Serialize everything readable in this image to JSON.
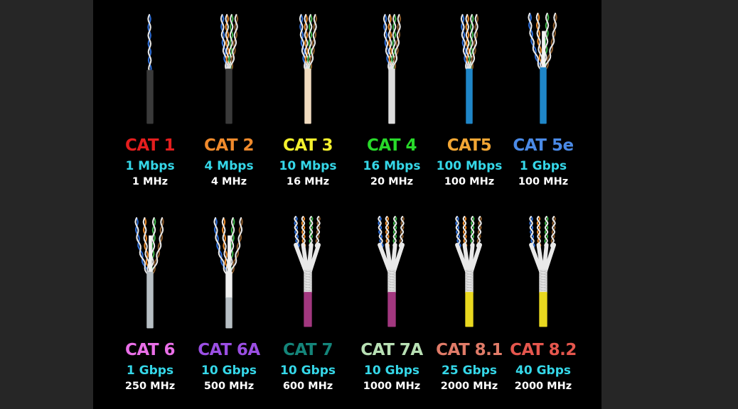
{
  "categories": [
    {
      "name": "CAT 1",
      "speed": "1 Mbps",
      "freq": "1 MHz",
      "color": "#e41e1e",
      "jacket": "#3a3a3a",
      "style": "bare2"
    },
    {
      "name": "CAT 2",
      "speed": "4 Mbps",
      "freq": "4 MHz",
      "color": "#f08a2c",
      "jacket": "#3a3a3a",
      "style": "bare4"
    },
    {
      "name": "CAT 3",
      "speed": "10 Mbps",
      "freq": "16 MHz",
      "color": "#f3f02d",
      "jacket": "#f1dcc0",
      "style": "bare4"
    },
    {
      "name": "CAT 4",
      "speed": "16 Mbps",
      "freq": "20 MHz",
      "color": "#28d92a",
      "jacket": "#dcdcdc",
      "style": "bare4"
    },
    {
      "name": "CAT5",
      "speed": "100 Mbps",
      "freq": "100 MHz",
      "color": "#f2a634",
      "jacket": "#1f86c8",
      "style": "bare4"
    },
    {
      "name": "CAT 5e",
      "speed": "1 Gbps",
      "freq": "100 MHz",
      "color": "#4a8ae6",
      "jacket": "#1f86c8",
      "style": "spline"
    },
    {
      "name": "CAT 6",
      "speed": "1 Gbps",
      "freq": "250 MHz",
      "color": "#ea6fe8",
      "jacket": "#b7bfc4",
      "style": "spline"
    },
    {
      "name": "CAT 6A",
      "speed": "10 Gbps",
      "freq": "500 MHz",
      "color": "#9b4fe3",
      "jacket": "#b7bfc4",
      "style": "spline-foil"
    },
    {
      "name": "CAT 7",
      "speed": "10 Gbps",
      "freq": "600 MHz",
      "color": "#14857a",
      "jacket": "#a2377f",
      "style": "shielded"
    },
    {
      "name": "CAT 7A",
      "speed": "10 Gbps",
      "freq": "1000 MHz",
      "color": "#b8e0b4",
      "jacket": "#a2377f",
      "style": "shielded"
    },
    {
      "name": "CAT 8.1",
      "speed": "25 Gbps",
      "freq": "2000 MHz",
      "color": "#e07b68",
      "jacket": "#e9d81f",
      "style": "shielded"
    },
    {
      "name": "CAT 8.2",
      "speed": "40 Gbps",
      "freq": "2000 MHz",
      "color": "#e5564d",
      "jacket": "#e9d81f",
      "style": "shielded"
    }
  ]
}
